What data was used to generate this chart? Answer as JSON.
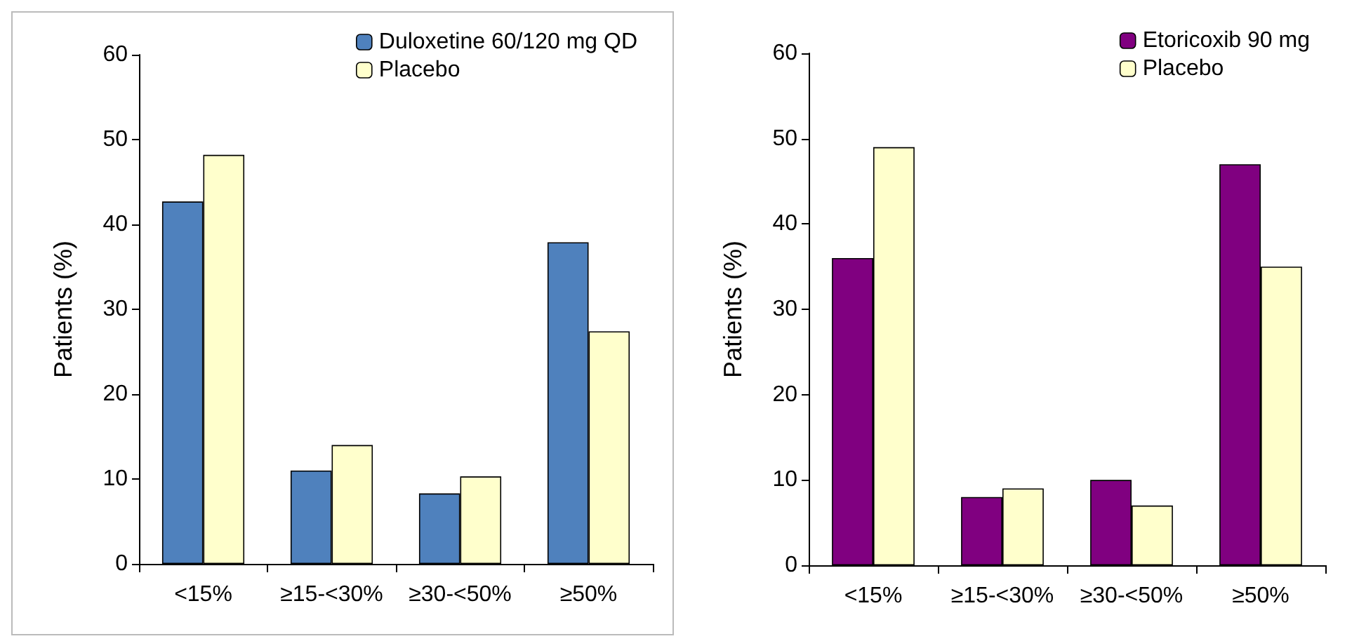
{
  "chart_data": [
    {
      "type": "bar",
      "ylabel": "Patients (%)",
      "categories": [
        "<15%",
        "≥15-<30%",
        "≥30-<50%",
        "≥50%"
      ],
      "series": [
        {
          "name": "Duloxetine 60/120 mg QD",
          "color": "#4f81bd",
          "values": [
            42.7,
            11,
            8.3,
            37.9
          ]
        },
        {
          "name": "Placebo",
          "color": "#ffffcc",
          "values": [
            48.2,
            14,
            10.3,
            27.4
          ]
        }
      ],
      "ylim": [
        0,
        60
      ],
      "yticks": [
        0,
        10,
        20,
        30,
        40,
        50,
        60
      ],
      "grid": false,
      "legend": "top right"
    },
    {
      "type": "bar",
      "ylabel": "Patients (%)",
      "categories": [
        "<15%",
        "≥15-<30%",
        "≥30-<50%",
        "≥50%"
      ],
      "series": [
        {
          "name": "Etoricoxib 90 mg",
          "color": "#800080",
          "values": [
            36,
            8,
            10,
            47
          ]
        },
        {
          "name": "Placebo",
          "color": "#ffffcc",
          "values": [
            49,
            9,
            7,
            35
          ]
        }
      ],
      "ylim": [
        0,
        60
      ],
      "yticks": [
        0,
        10,
        20,
        30,
        40,
        50,
        60
      ],
      "grid": false,
      "legend": "top right"
    }
  ]
}
